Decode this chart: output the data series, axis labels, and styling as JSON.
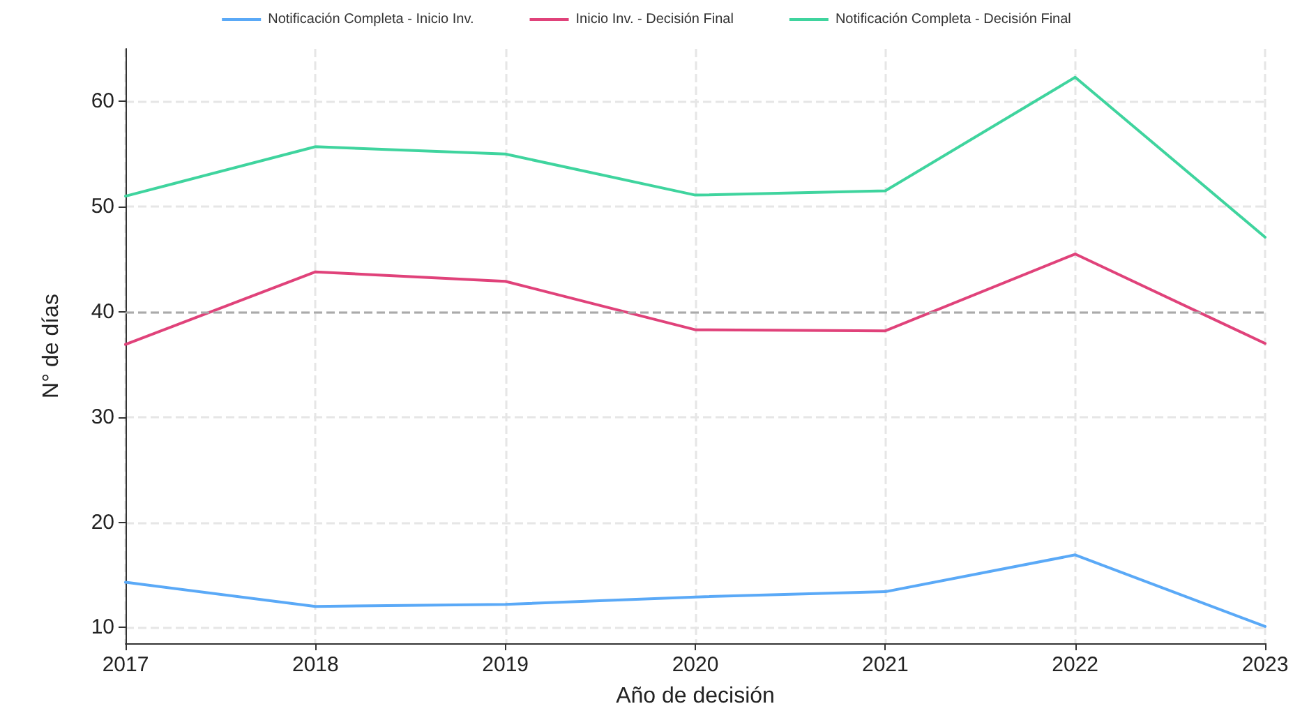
{
  "chart_data": {
    "type": "line",
    "xlabel": "Año de decisión",
    "ylabel": "N° de días",
    "x": [
      2017,
      2018,
      2019,
      2020,
      2021,
      2022,
      2023
    ],
    "series": [
      {
        "name": "Notificación Completa - Inicio Inv.",
        "color": "#5aa9f7",
        "values": [
          14.3,
          12.0,
          12.2,
          12.9,
          13.4,
          16.9,
          10.1
        ]
      },
      {
        "name": "Inicio Inv. - Decisión Final",
        "color": "#e0427a",
        "values": [
          36.9,
          43.8,
          42.9,
          38.3,
          38.2,
          45.5,
          37.0
        ]
      },
      {
        "name": "Notificación Completa - Decisión Final",
        "color": "#3fd49e",
        "values": [
          51.0,
          55.7,
          55.0,
          51.1,
          51.5,
          62.3,
          47.1
        ]
      }
    ],
    "xlim": [
      2017,
      2023
    ],
    "xticks": [
      2017,
      2018,
      2019,
      2020,
      2021,
      2022,
      2023
    ],
    "ylim": [
      8.5,
      65
    ],
    "yticks": [
      10,
      20,
      30,
      40,
      50,
      60
    ],
    "ref_lines": [
      {
        "axis": "y",
        "value": 40,
        "color": "#aaaaaa",
        "line_style": "dashed"
      }
    ],
    "grid": true,
    "legend": "top",
    "marker": "none",
    "line_style": "solid"
  }
}
